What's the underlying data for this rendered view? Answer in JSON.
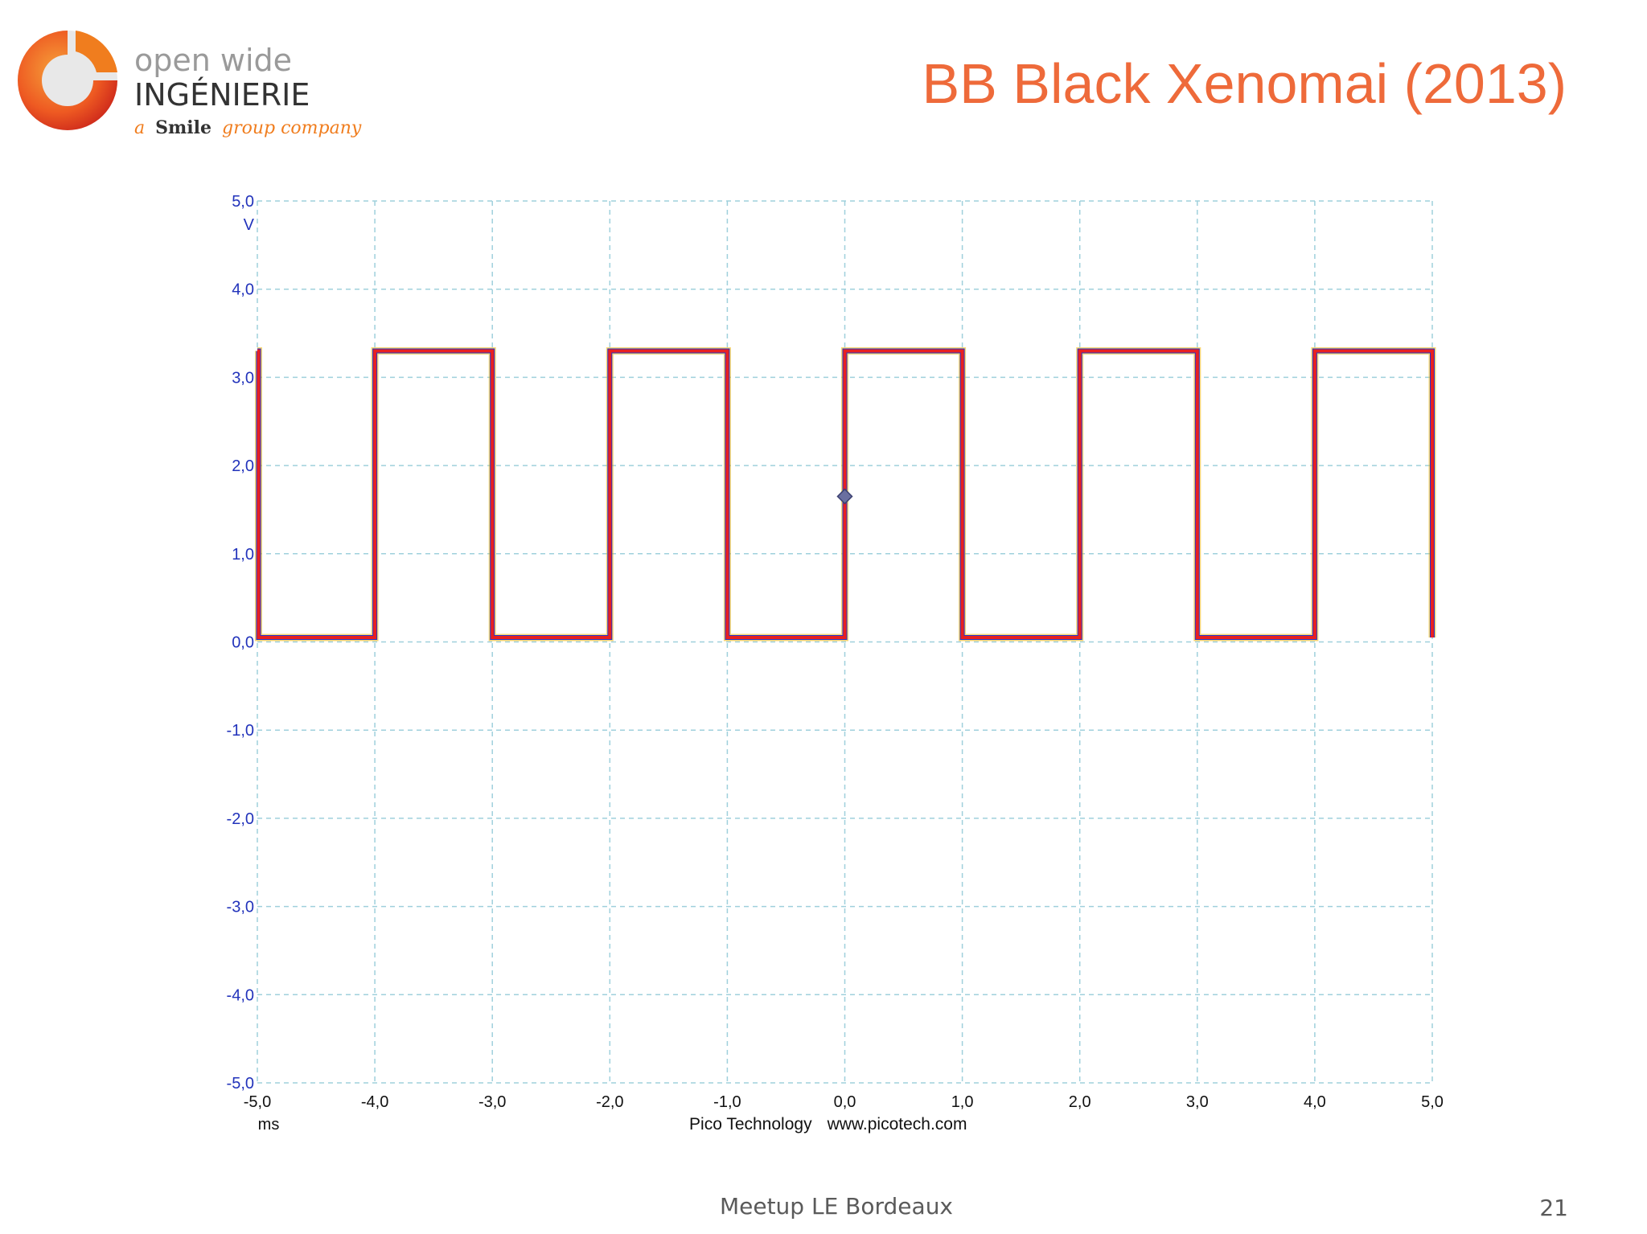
{
  "logo": {
    "line1": "open wide",
    "line2": "INGÉNIERIE",
    "tagline_a": "a",
    "tagline_brand": "Smile",
    "tagline_rest": "group company",
    "colors": {
      "orange": "#f07d1e",
      "red": "#d52a1e",
      "gray": "#9a9a9a",
      "dark": "#333333"
    }
  },
  "slide": {
    "title": "BB Black Xenomai (2013)",
    "footer": "Meetup LE Bordeaux",
    "page": "21"
  },
  "chart_data": {
    "type": "line",
    "title": "",
    "xlabel": "ms",
    "ylabel": "V",
    "xlim": [
      -5.0,
      5.0
    ],
    "ylim": [
      -5.0,
      5.0
    ],
    "grid": true,
    "x_ticks": [
      "-5,0",
      "-4,0",
      "-3,0",
      "-2,0",
      "-1,0",
      "0,0",
      "1,0",
      "2,0",
      "3,0",
      "4,0",
      "5,0"
    ],
    "y_ticks": [
      "5,0",
      "4,0",
      "3,0",
      "2,0",
      "1,0",
      "0,0",
      "-1,0",
      "-2,0",
      "-3,0",
      "-4,0",
      "-5,0"
    ],
    "credits": [
      "Pico Technology",
      "www.picotech.com"
    ],
    "trigger_marker": {
      "x": 0.0,
      "y": 1.65
    },
    "series": [
      {
        "color": "#e82020",
        "x": [
          -5.0,
          -4.99,
          -4.99,
          -4.0,
          -4.0,
          -3.0,
          -3.0,
          -2.0,
          -2.0,
          -1.0,
          -1.0,
          0.0,
          0.0,
          1.0,
          1.0,
          2.0,
          2.0,
          3.0,
          3.0,
          4.0,
          4.0,
          5.0,
          5.0
        ],
        "y": [
          3.3,
          3.3,
          0.05,
          0.05,
          3.3,
          3.3,
          0.05,
          0.05,
          3.3,
          3.3,
          0.05,
          0.05,
          3.3,
          3.3,
          0.05,
          0.05,
          3.3,
          3.3,
          0.05,
          0.05,
          3.3,
          3.3,
          0.05
        ]
      }
    ],
    "colors": {
      "trace": "#e82020",
      "trace_edge": "#2233cc",
      "trace_glow": "#f2b400",
      "grid": "#9fd0dc",
      "tick_labels": "#2233bb"
    }
  }
}
